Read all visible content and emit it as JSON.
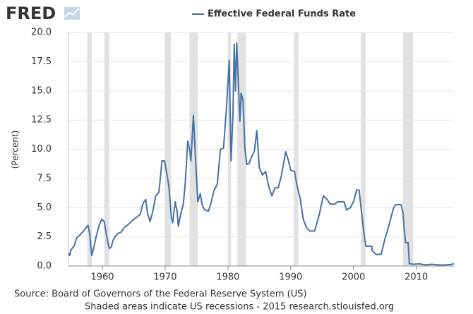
{
  "chart_data": {
    "type": "line",
    "logo": "FRED",
    "ylabel": "(Percent)",
    "source": "Source: Board of Governors of the Federal Reserve System (US)",
    "note": "Shaded areas indicate US recessions - 2015 research.stlouisfed.org",
    "xlim": [
      1954.6,
      2016
    ],
    "xticks": [
      1960,
      1970,
      1980,
      1990,
      2000,
      2010
    ],
    "ylim": [
      0,
      20
    ],
    "yticks": [
      {
        "value": 0,
        "label": "0.0"
      },
      2.5,
      {
        "value": 5,
        "label": "5.0"
      },
      7.5,
      {
        "value": 10,
        "label": "10.0"
      },
      12.5,
      {
        "value": 15,
        "label": "15.0"
      },
      17.5,
      {
        "value": 20,
        "label": "20.0"
      }
    ],
    "grid": true,
    "recessions": [
      [
        1957.6,
        1958.3
      ],
      [
        1960.3,
        1961.1
      ],
      [
        1969.9,
        1970.9
      ],
      [
        1973.9,
        1975.2
      ],
      [
        1980.0,
        1980.5
      ],
      [
        1981.5,
        1982.9
      ],
      [
        1990.5,
        1991.2
      ],
      [
        2001.2,
        2001.9
      ],
      [
        2007.9,
        2009.5
      ]
    ],
    "recession_color": "#e1e1e1",
    "x": [
      1954.6,
      1954.8,
      1955.0,
      1955.5,
      1955.9,
      1956.5,
      1957.0,
      1957.7,
      1958.0,
      1958.3,
      1958.6,
      1959.0,
      1959.5,
      1959.9,
      1960.3,
      1960.6,
      1960.9,
      1961.1,
      1961.4,
      1961.7,
      1962.0,
      1962.5,
      1963.0,
      1963.5,
      1964.0,
      1965.0,
      1966.0,
      1966.5,
      1966.9,
      1967.2,
      1967.6,
      1968.0,
      1968.5,
      1969.0,
      1969.5,
      1969.9,
      1970.3,
      1970.6,
      1971.0,
      1971.2,
      1971.6,
      1971.9,
      1972.1,
      1972.5,
      1972.9,
      1973.2,
      1973.6,
      1973.9,
      1974.1,
      1974.5,
      1974.9,
      1975.2,
      1975.6,
      1975.9,
      1976.3,
      1976.9,
      1977.3,
      1977.8,
      1978.3,
      1978.8,
      1979.3,
      1979.8,
      1980.2,
      1980.5,
      1980.8,
      1981.0,
      1981.2,
      1981.4,
      1981.7,
      1981.9,
      1982.1,
      1982.4,
      1982.7,
      1983.0,
      1983.4,
      1983.8,
      1984.2,
      1984.6,
      1985.0,
      1985.5,
      1986.0,
      1986.5,
      1987.0,
      1987.5,
      1988.0,
      1988.5,
      1989.2,
      1989.6,
      1990.0,
      1990.6,
      1991.0,
      1991.5,
      1992.0,
      1992.5,
      1993.0,
      1993.8,
      1994.5,
      1995.2,
      1995.8,
      1996.3,
      1997.0,
      1997.5,
      1998.5,
      1998.9,
      1999.5,
      2000.0,
      2000.5,
      2000.9,
      2001.3,
      2001.8,
      2002.0,
      2002.9,
      2003.0,
      2003.6,
      2004.4,
      2005.0,
      2005.6,
      2006.4,
      2006.7,
      2007.6,
      2007.9,
      2008.1,
      2008.3,
      2008.7,
      2008.9,
      2009.5,
      2010.5,
      2011.5,
      2012.5,
      2013.5,
      2014.5,
      2015.5,
      2016.0
    ],
    "series": [
      {
        "name": "Effective Federal Funds Rate",
        "color": "#4572a7",
        "values": [
          1.1,
          0.9,
          1.4,
          1.7,
          2.4,
          2.7,
          3.0,
          3.5,
          2.7,
          0.9,
          1.5,
          2.5,
          3.5,
          4.0,
          3.8,
          2.8,
          2.0,
          1.5,
          1.6,
          2.2,
          2.5,
          2.8,
          2.9,
          3.3,
          3.5,
          4.0,
          4.4,
          5.4,
          5.7,
          4.5,
          3.8,
          4.6,
          6.0,
          6.3,
          9.0,
          9.0,
          7.8,
          6.8,
          4.1,
          3.7,
          5.5,
          4.7,
          3.4,
          4.5,
          5.3,
          7.1,
          10.7,
          10.0,
          9.0,
          12.9,
          8.5,
          5.5,
          6.2,
          5.2,
          4.8,
          4.7,
          5.4,
          6.5,
          7.0,
          10.0,
          10.1,
          13.8,
          17.6,
          9.0,
          13.0,
          19.0,
          15.0,
          19.1,
          15.0,
          12.4,
          14.8,
          14.2,
          10.1,
          8.7,
          8.8,
          9.4,
          9.8,
          11.6,
          8.4,
          7.8,
          8.1,
          6.8,
          6.0,
          6.7,
          6.7,
          7.7,
          9.8,
          9.1,
          8.2,
          8.1,
          6.9,
          5.8,
          4.0,
          3.3,
          3.0,
          3.0,
          4.3,
          6.0,
          5.7,
          5.3,
          5.3,
          5.5,
          5.5,
          4.8,
          5.0,
          5.5,
          6.5,
          6.5,
          4.5,
          2.2,
          1.7,
          1.7,
          1.3,
          1.0,
          1.0,
          2.3,
          3.4,
          5.0,
          5.25,
          5.25,
          4.5,
          3.0,
          2.0,
          2.0,
          0.2,
          0.15,
          0.18,
          0.09,
          0.15,
          0.09,
          0.09,
          0.13,
          0.2
        ]
      }
    ]
  }
}
